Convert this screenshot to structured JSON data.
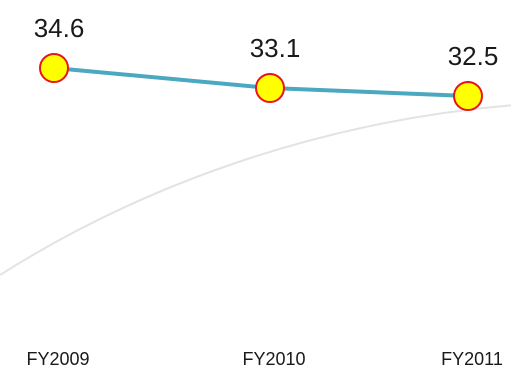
{
  "chart_data": {
    "type": "line",
    "categories": [
      "FY2009",
      "FY2010",
      "FY2011"
    ],
    "series": [
      {
        "values": [
          34.6,
          33.1,
          32.5
        ],
        "line_color": "#4aa8c0",
        "marker_fill": "#ffff00",
        "marker_stroke": "#e8141c"
      }
    ],
    "data_labels": [
      "34.6",
      "33.1",
      "32.5"
    ],
    "background_curve_color": "#e3e3e3",
    "grid": false,
    "legend": "none"
  }
}
